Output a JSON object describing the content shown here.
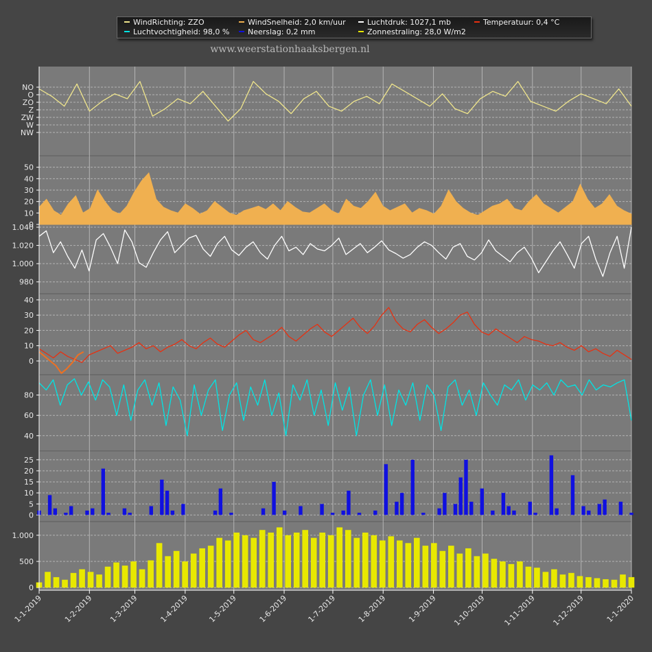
{
  "site_url": "www.weerstationhaaksbergen.nl",
  "legend": [
    {
      "label": "WindRichting: ZZO",
      "color": "#f0e68c"
    },
    {
      "label": "WindSnelheid: 2,0 km/uur",
      "color": "#f0b050"
    },
    {
      "label": "Luchtdruk: 1027,1 mb",
      "color": "#ffffff"
    },
    {
      "label": "Temperatuur: 0,4 °C",
      "color": "#e83010"
    },
    {
      "label": "Luchtvochtigheid: 98,0 %",
      "color": "#00e5e5"
    },
    {
      "label": "Neerslag: 0,2 mm",
      "color": "#1010e0"
    },
    {
      "label": "Zonnestraling: 28,0 W/m2",
      "color": "#e8e800"
    }
  ],
  "chart_data": [
    {
      "type": "line",
      "series": [
        {
          "name": "WindRichting",
          "color": "#f0e68c",
          "values": [
            270,
            240,
            200,
            290,
            180,
            220,
            250,
            230,
            300,
            160,
            190,
            230,
            210,
            260,
            200,
            140,
            190,
            300,
            250,
            220,
            170,
            230,
            260,
            200,
            180,
            220,
            240,
            210,
            290,
            260,
            230,
            200,
            250,
            190,
            170,
            230,
            260,
            240,
            300,
            220,
            200,
            180,
            220,
            250,
            230,
            210,
            270,
            200
          ]
        }
      ],
      "y_ticks": [
        "NW",
        "W",
        "ZW",
        "Z",
        "ZO",
        "O",
        "NO"
      ],
      "ylim": [
        0,
        360
      ]
    },
    {
      "type": "area",
      "series": [
        {
          "name": "WindSnelheid",
          "color": "#f0b050",
          "values": [
            15,
            22,
            12,
            8,
            18,
            25,
            10,
            14,
            30,
            20,
            12,
            9,
            16,
            28,
            38,
            45,
            22,
            15,
            12,
            10,
            18,
            14,
            9,
            12,
            20,
            15,
            10,
            8,
            12,
            14,
            16,
            13,
            18,
            12,
            20,
            15,
            11,
            10,
            14,
            18,
            12,
            9,
            22,
            16,
            14,
            20,
            28,
            16,
            12,
            15,
            18,
            10,
            14,
            12,
            9,
            16,
            30,
            20,
            14,
            10,
            8,
            12,
            16,
            18,
            22,
            14,
            12,
            20,
            26,
            18,
            14,
            10,
            15,
            20,
            35,
            22,
            14,
            18,
            26,
            16,
            12,
            9
          ]
        }
      ],
      "y_ticks": [
        0,
        10,
        20,
        30,
        40,
        50
      ],
      "ylim": [
        0,
        60
      ]
    },
    {
      "type": "line",
      "series": [
        {
          "name": "Luchtdruk",
          "color": "#ffffff",
          "values": [
            1030,
            1036,
            1012,
            1024,
            1008,
            995,
            1015,
            992,
            1026,
            1033,
            1018,
            1000,
            1037,
            1024,
            1001,
            996,
            1012,
            1026,
            1035,
            1012,
            1020,
            1028,
            1031,
            1016,
            1008,
            1022,
            1030,
            1015,
            1009,
            1018,
            1024,
            1012,
            1005,
            1020,
            1030,
            1014,
            1018,
            1010,
            1022,
            1016,
            1014,
            1020,
            1028,
            1010,
            1016,
            1022,
            1012,
            1018,
            1025,
            1015,
            1011,
            1006,
            1010,
            1018,
            1024,
            1020,
            1012,
            1005,
            1018,
            1022,
            1008,
            1004,
            1012,
            1026,
            1014,
            1008,
            1002,
            1012,
            1018,
            1006,
            990,
            1002,
            1014,
            1024,
            1010,
            995,
            1022,
            1030,
            1005,
            986,
            1012,
            1030,
            995,
            1040
          ]
        }
      ],
      "y_ticks": [
        980,
        1000,
        1020,
        1040
      ],
      "y_tick_labels": [
        "980",
        "1.000",
        "1.020",
        "1.040"
      ],
      "ylim": [
        967,
        1043
      ]
    },
    {
      "type": "line",
      "series": [
        {
          "name": "Temperatuur",
          "color": "#e83010",
          "values": [
            8,
            5,
            2,
            6,
            3,
            1,
            -1,
            4,
            6,
            8,
            10,
            5,
            7,
            9,
            12,
            8,
            10,
            6,
            9,
            11,
            14,
            10,
            8,
            12,
            15,
            11,
            9,
            13,
            17,
            20,
            14,
            12,
            15,
            18,
            22,
            16,
            13,
            17,
            21,
            24,
            19,
            16,
            20,
            24,
            28,
            22,
            18,
            23,
            30,
            35,
            26,
            21,
            19,
            24,
            27,
            22,
            18,
            21,
            25,
            30,
            32,
            24,
            19,
            17,
            21,
            18,
            15,
            12,
            16,
            14,
            13,
            11,
            10,
            12,
            9,
            7,
            10,
            6,
            8,
            5,
            3,
            7,
            4,
            1
          ]
        },
        {
          "name": "Gevoelstemperatuur",
          "color": "#f07020",
          "values": [
            6,
            3,
            0,
            -3,
            -8,
            -5,
            -1,
            4,
            6
          ]
        }
      ],
      "y_ticks": [
        0,
        10,
        20,
        30,
        40
      ],
      "ylim": [
        -9,
        44
      ]
    },
    {
      "type": "line",
      "series": [
        {
          "name": "Luchtvochtigheid",
          "color": "#00e5e5",
          "values": [
            92,
            85,
            95,
            70,
            90,
            96,
            80,
            93,
            75,
            95,
            88,
            60,
            90,
            55,
            85,
            95,
            70,
            92,
            50,
            88,
            75,
            40,
            90,
            60,
            85,
            95,
            45,
            80,
            92,
            55,
            88,
            70,
            95,
            60,
            82,
            40,
            90,
            75,
            95,
            60,
            85,
            50,
            92,
            65,
            88,
            40,
            80,
            95,
            60,
            90,
            50,
            85,
            70,
            92,
            55,
            90,
            80,
            45,
            88,
            95,
            70,
            85,
            60,
            92,
            80,
            70,
            90,
            85,
            95,
            75,
            90,
            85,
            92,
            80,
            95,
            88,
            90,
            80,
            95,
            85,
            90,
            88,
            92,
            95,
            55
          ]
        }
      ],
      "y_ticks": [
        40,
        60,
        80
      ],
      "ylim": [
        25,
        100
      ]
    },
    {
      "type": "bar",
      "series": [
        {
          "name": "Neerslag",
          "color": "#1010e0",
          "values": [
            2,
            0,
            9,
            3,
            0,
            1,
            4,
            0,
            0,
            2,
            3,
            0,
            21,
            1,
            0,
            0,
            3,
            1,
            0,
            0,
            0,
            4,
            0,
            16,
            11,
            2,
            0,
            5,
            0,
            0,
            0,
            0,
            0,
            2,
            12,
            0,
            1,
            0,
            0,
            0,
            0,
            0,
            3,
            0,
            15,
            0,
            2,
            0,
            0,
            4,
            0,
            0,
            0,
            5,
            0,
            1,
            0,
            2,
            11,
            0,
            1,
            0,
            0,
            2,
            0,
            23,
            0,
            6,
            10,
            0,
            25,
            0,
            1,
            0,
            0,
            3,
            10,
            0,
            5,
            17,
            25,
            6,
            0,
            12,
            0,
            2,
            0,
            10,
            4,
            2,
            0,
            0,
            6,
            1,
            0,
            0,
            27,
            3,
            0,
            0,
            18,
            0,
            4,
            2,
            0,
            5,
            7,
            0,
            0,
            6,
            0,
            1
          ]
        }
      ],
      "y_ticks": [
        0,
        5,
        10,
        15,
        20,
        25
      ],
      "ylim": [
        -3,
        29
      ]
    },
    {
      "type": "bar",
      "series": [
        {
          "name": "Zonnestraling",
          "color": "#e8e800",
          "values": [
            100,
            300,
            200,
            150,
            280,
            350,
            300,
            250,
            400,
            480,
            420,
            500,
            350,
            520,
            850,
            600,
            700,
            500,
            650,
            750,
            800,
            950,
            900,
            1050,
            1000,
            950,
            1100,
            1050,
            1150,
            1000,
            1050,
            1100,
            950,
            1050,
            1000,
            1150,
            1100,
            950,
            1050,
            1000,
            900,
            980,
            900,
            850,
            950,
            800,
            850,
            700,
            800,
            650,
            750,
            600,
            650,
            550,
            500,
            450,
            500,
            400,
            380,
            300,
            350,
            250,
            280,
            220,
            200,
            180,
            160,
            150,
            250,
            200
          ]
        }
      ],
      "y_ticks": [
        0,
        500,
        1000
      ],
      "y_tick_labels": [
        "0",
        "500",
        "1.000"
      ],
      "ylim": [
        -50,
        1260
      ]
    }
  ],
  "x_axis": {
    "ticks": [
      "1-1-2019",
      "1-2-2019",
      "1-3-2019",
      "1-4-2019",
      "1-5-2019",
      "1-6-2019",
      "1-7-2019",
      "1-8-2019",
      "1-9-2019",
      "1-10-2019",
      "1-11-2019",
      "1-12-2019",
      "1-1-2020"
    ],
    "day_offsets": [
      0,
      31,
      59,
      90,
      120,
      151,
      181,
      212,
      243,
      273,
      304,
      334,
      365
    ]
  },
  "colors": {
    "background": "#454545",
    "plot_area": "#7a7a7a",
    "grid": "#b4b4b4"
  }
}
